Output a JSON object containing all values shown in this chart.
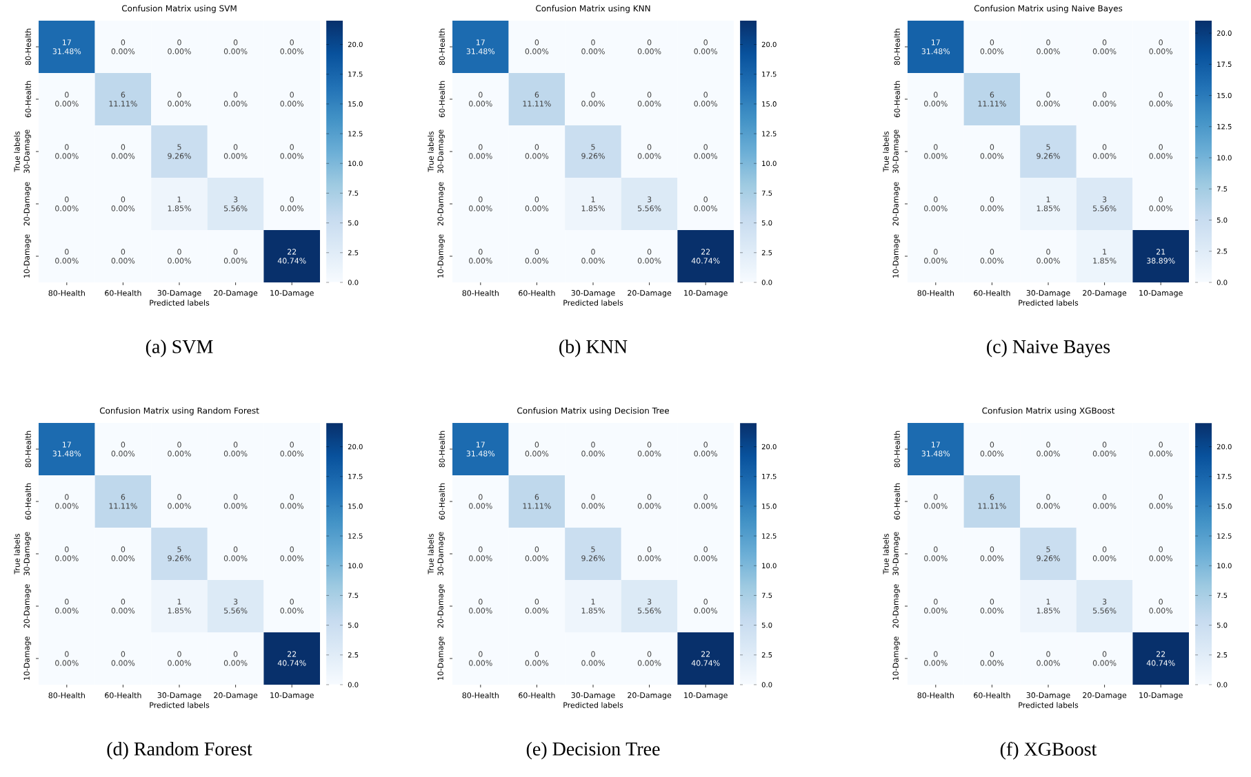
{
  "chart_data": [
    {
      "type": "heatmap",
      "title": "Confusion Matrix using SVM",
      "xlabel": "Predicted labels",
      "ylabel": "True labels",
      "categories": [
        "80-Health",
        "60-Health",
        "30-Damage",
        "20-Damage",
        "10-Damage"
      ],
      "y_categories": [
        "80-Health",
        "60-Health",
        "30-Damage",
        "20-Damage",
        "10-Damage"
      ],
      "cells": [
        [
          17,
          0,
          0,
          0,
          0
        ],
        [
          0,
          6,
          0,
          0,
          0
        ],
        [
          0,
          0,
          5,
          0,
          0
        ],
        [
          0,
          0,
          1,
          3,
          0
        ],
        [
          0,
          0,
          0,
          0,
          22
        ]
      ],
      "cell_labels": [
        [
          "17 31.48%",
          "0 0.00%",
          "0 0.00%",
          "0 0.00%",
          "0 0.00%"
        ],
        [
          "0 0.00%",
          "6 11.11%",
          "0 0.00%",
          "0 0.00%",
          "0 0.00%"
        ],
        [
          "0 0.00%",
          "0 0.00%",
          "5 9.26%",
          "0 0.00%",
          "0 0.00%"
        ],
        [
          "0 0.00%",
          "0 0.00%",
          "1 1.85%",
          "3 5.56%",
          "0 0.00%"
        ],
        [
          "0 0.00%",
          "0 0.00%",
          "0 0.00%",
          "0 0.00%",
          "22 40.74%"
        ]
      ],
      "clim": [
        0,
        22
      ],
      "cticks": [
        {
          "value": 0,
          "label": "0.0"
        },
        {
          "value": 2.5,
          "label": "2.5"
        },
        {
          "value": 5,
          "label": "5.0"
        },
        {
          "value": 7.5,
          "label": "7.5"
        },
        {
          "value": 10,
          "label": "10.0"
        },
        {
          "value": 12.5,
          "label": "12.5"
        },
        {
          "value": 15,
          "label": "15.0"
        },
        {
          "value": 17.5,
          "label": "17.5"
        },
        {
          "value": 20,
          "label": "20.0"
        }
      ],
      "annotations": [
        "(a) SVM"
      ]
    },
    {
      "type": "heatmap",
      "title": "Confusion Matrix using KNN",
      "xlabel": "Predicted labels",
      "ylabel": "True labels",
      "categories": [
        "80-Health",
        "60-Health",
        "30-Damage",
        "20-Damage",
        "10-Damage"
      ],
      "y_categories": [
        "80-Health",
        "60-Health",
        "30-Damage",
        "20-Damage",
        "10-Damage"
      ],
      "cells": [
        [
          17,
          0,
          0,
          0,
          0
        ],
        [
          0,
          6,
          0,
          0,
          0
        ],
        [
          0,
          0,
          5,
          0,
          0
        ],
        [
          0,
          0,
          1,
          3,
          0
        ],
        [
          0,
          0,
          0,
          0,
          22
        ]
      ],
      "cell_labels": [
        [
          "17 31.48%",
          "0 0.00%",
          "0 0.00%",
          "0 0.00%",
          "0 0.00%"
        ],
        [
          "0 0.00%",
          "6 11.11%",
          "0 0.00%",
          "0 0.00%",
          "0 0.00%"
        ],
        [
          "0 0.00%",
          "0 0.00%",
          "5 9.26%",
          "0 0.00%",
          "0 0.00%"
        ],
        [
          "0 0.00%",
          "0 0.00%",
          "1 1.85%",
          "3 5.56%",
          "0 0.00%"
        ],
        [
          "0 0.00%",
          "0 0.00%",
          "0 0.00%",
          "0 0.00%",
          "22 40.74%"
        ]
      ],
      "clim": [
        0,
        22
      ],
      "cticks": [
        {
          "value": 0,
          "label": "0.0"
        },
        {
          "value": 2.5,
          "label": "2.5"
        },
        {
          "value": 5,
          "label": "5.0"
        },
        {
          "value": 7.5,
          "label": "7.5"
        },
        {
          "value": 10,
          "label": "10.0"
        },
        {
          "value": 12.5,
          "label": "12.5"
        },
        {
          "value": 15,
          "label": "15.0"
        },
        {
          "value": 17.5,
          "label": "17.5"
        },
        {
          "value": 20,
          "label": "20.0"
        }
      ],
      "annotations": [
        "(b) KNN"
      ]
    },
    {
      "type": "heatmap",
      "title": "Confusion Matrix using Naive Bayes",
      "xlabel": "Predicted labels",
      "ylabel": "True labels",
      "categories": [
        "80-Health",
        "60-Health",
        "30-Damage",
        "20-Damage",
        "10-Damage"
      ],
      "y_categories": [
        "80-Health",
        "60-Health",
        "30-Damage",
        "20-Damage",
        "10-Damage"
      ],
      "cells": [
        [
          17,
          0,
          0,
          0,
          0
        ],
        [
          0,
          6,
          0,
          0,
          0
        ],
        [
          0,
          0,
          5,
          0,
          0
        ],
        [
          0,
          0,
          1,
          3,
          0
        ],
        [
          0,
          0,
          0,
          1,
          21
        ]
      ],
      "cell_labels": [
        [
          "17 31.48%",
          "0 0.00%",
          "0 0.00%",
          "0 0.00%",
          "0 0.00%"
        ],
        [
          "0 0.00%",
          "6 11.11%",
          "0 0.00%",
          "0 0.00%",
          "0 0.00%"
        ],
        [
          "0 0.00%",
          "0 0.00%",
          "5 9.26%",
          "0 0.00%",
          "0 0.00%"
        ],
        [
          "0 0.00%",
          "0 0.00%",
          "1 1.85%",
          "3 5.56%",
          "0 0.00%"
        ],
        [
          "0 0.00%",
          "0 0.00%",
          "0 0.00%",
          "1 1.85%",
          "21 38.89%"
        ]
      ],
      "clim": [
        0,
        21
      ],
      "cticks": [
        {
          "value": 0,
          "label": "0.0"
        },
        {
          "value": 2.5,
          "label": "2.5"
        },
        {
          "value": 5,
          "label": "5.0"
        },
        {
          "value": 7.5,
          "label": "7.5"
        },
        {
          "value": 10,
          "label": "10.0"
        },
        {
          "value": 12.5,
          "label": "12.5"
        },
        {
          "value": 15,
          "label": "15.0"
        },
        {
          "value": 17.5,
          "label": "17.5"
        },
        {
          "value": 20,
          "label": "20.0"
        }
      ],
      "annotations": [
        "(c) Naive Bayes"
      ]
    },
    {
      "type": "heatmap",
      "title": "Confusion Matrix using Random Forest",
      "xlabel": "Predicted labels",
      "ylabel": "True labels",
      "categories": [
        "80-Health",
        "60-Health",
        "30-Damage",
        "20-Damage",
        "10-Damage"
      ],
      "y_categories": [
        "80-Health",
        "60-Health",
        "30-Damage",
        "20-Damage",
        "10-Damage"
      ],
      "cells": [
        [
          17,
          0,
          0,
          0,
          0
        ],
        [
          0,
          6,
          0,
          0,
          0
        ],
        [
          0,
          0,
          5,
          0,
          0
        ],
        [
          0,
          0,
          1,
          3,
          0
        ],
        [
          0,
          0,
          0,
          0,
          22
        ]
      ],
      "cell_labels": [
        [
          "17 31.48%",
          "0 0.00%",
          "0 0.00%",
          "0 0.00%",
          "0 0.00%"
        ],
        [
          "0 0.00%",
          "6 11.11%",
          "0 0.00%",
          "0 0.00%",
          "0 0.00%"
        ],
        [
          "0 0.00%",
          "0 0.00%",
          "5 9.26%",
          "0 0.00%",
          "0 0.00%"
        ],
        [
          "0 0.00%",
          "0 0.00%",
          "1 1.85%",
          "3 5.56%",
          "0 0.00%"
        ],
        [
          "0 0.00%",
          "0 0.00%",
          "0 0.00%",
          "0 0.00%",
          "22 40.74%"
        ]
      ],
      "clim": [
        0,
        22
      ],
      "cticks": [
        {
          "value": 0,
          "label": "0.0"
        },
        {
          "value": 2.5,
          "label": "2.5"
        },
        {
          "value": 5,
          "label": "5.0"
        },
        {
          "value": 7.5,
          "label": "7.5"
        },
        {
          "value": 10,
          "label": "10.0"
        },
        {
          "value": 12.5,
          "label": "12.5"
        },
        {
          "value": 15,
          "label": "15.0"
        },
        {
          "value": 17.5,
          "label": "17.5"
        },
        {
          "value": 20,
          "label": "20.0"
        }
      ],
      "annotations": [
        "(d) Random Forest"
      ]
    },
    {
      "type": "heatmap",
      "title": "Confusion Matrix using Decision Tree",
      "xlabel": "Predicted labels",
      "ylabel": "True labels",
      "categories": [
        "80-Health",
        "60-Health",
        "30-Damage",
        "20-Damage",
        "10-Damage"
      ],
      "y_categories": [
        "80-Health",
        "60-Health",
        "30-Damage",
        "20-Damage",
        "10-Damage"
      ],
      "cells": [
        [
          17,
          0,
          0,
          0,
          0
        ],
        [
          0,
          6,
          0,
          0,
          0
        ],
        [
          0,
          0,
          5,
          0,
          0
        ],
        [
          0,
          0,
          1,
          3,
          0
        ],
        [
          0,
          0,
          0,
          0,
          22
        ]
      ],
      "cell_labels": [
        [
          "17 31.48%",
          "0 0.00%",
          "0 0.00%",
          "0 0.00%",
          "0 0.00%"
        ],
        [
          "0 0.00%",
          "6 11.11%",
          "0 0.00%",
          "0 0.00%",
          "0 0.00%"
        ],
        [
          "0 0.00%",
          "0 0.00%",
          "5 9.26%",
          "0 0.00%",
          "0 0.00%"
        ],
        [
          "0 0.00%",
          "0 0.00%",
          "1 1.85%",
          "3 5.56%",
          "0 0.00%"
        ],
        [
          "0 0.00%",
          "0 0.00%",
          "0 0.00%",
          "0 0.00%",
          "22 40.74%"
        ]
      ],
      "clim": [
        0,
        22
      ],
      "cticks": [
        {
          "value": 0,
          "label": "0.0"
        },
        {
          "value": 2.5,
          "label": "2.5"
        },
        {
          "value": 5,
          "label": "5.0"
        },
        {
          "value": 7.5,
          "label": "7.5"
        },
        {
          "value": 10,
          "label": "10.0"
        },
        {
          "value": 12.5,
          "label": "12.5"
        },
        {
          "value": 15,
          "label": "15.0"
        },
        {
          "value": 17.5,
          "label": "17.5"
        },
        {
          "value": 20,
          "label": "20.0"
        }
      ],
      "annotations": [
        "(e) Decision Tree"
      ]
    },
    {
      "type": "heatmap",
      "title": "Confusion Matrix using XGBoost",
      "xlabel": "Predicted labels",
      "ylabel": "True labels",
      "categories": [
        "80-Health",
        "60-Health",
        "30-Damage",
        "20-Damage",
        "10-Damage"
      ],
      "y_categories": [
        "80-Health",
        "60-Health",
        "30-Damage",
        "20-Damage",
        "10-Damage"
      ],
      "cells": [
        [
          17,
          0,
          0,
          0,
          0
        ],
        [
          0,
          6,
          0,
          0,
          0
        ],
        [
          0,
          0,
          5,
          0,
          0
        ],
        [
          0,
          0,
          1,
          3,
          0
        ],
        [
          0,
          0,
          0,
          0,
          22
        ]
      ],
      "cell_labels": [
        [
          "17 31.48%",
          "0 0.00%",
          "0 0.00%",
          "0 0.00%",
          "0 0.00%"
        ],
        [
          "0 0.00%",
          "6 11.11%",
          "0 0.00%",
          "0 0.00%",
          "0 0.00%"
        ],
        [
          "0 0.00%",
          "0 0.00%",
          "5 9.26%",
          "0 0.00%",
          "0 0.00%"
        ],
        [
          "0 0.00%",
          "0 0.00%",
          "1 1.85%",
          "3 5.56%",
          "0 0.00%"
        ],
        [
          "0 0.00%",
          "0 0.00%",
          "0 0.00%",
          "0 0.00%",
          "22 40.74%"
        ]
      ],
      "clim": [
        0,
        22
      ],
      "cticks": [
        {
          "value": 0,
          "label": "0.0"
        },
        {
          "value": 2.5,
          "label": "2.5"
        },
        {
          "value": 5,
          "label": "5.0"
        },
        {
          "value": 7.5,
          "label": "7.5"
        },
        {
          "value": 10,
          "label": "10.0"
        },
        {
          "value": 12.5,
          "label": "12.5"
        },
        {
          "value": 15,
          "label": "15.0"
        },
        {
          "value": 17.5,
          "label": "17.5"
        },
        {
          "value": 20,
          "label": "20.0"
        }
      ],
      "annotations": [
        "(f) XGBoost"
      ]
    }
  ]
}
